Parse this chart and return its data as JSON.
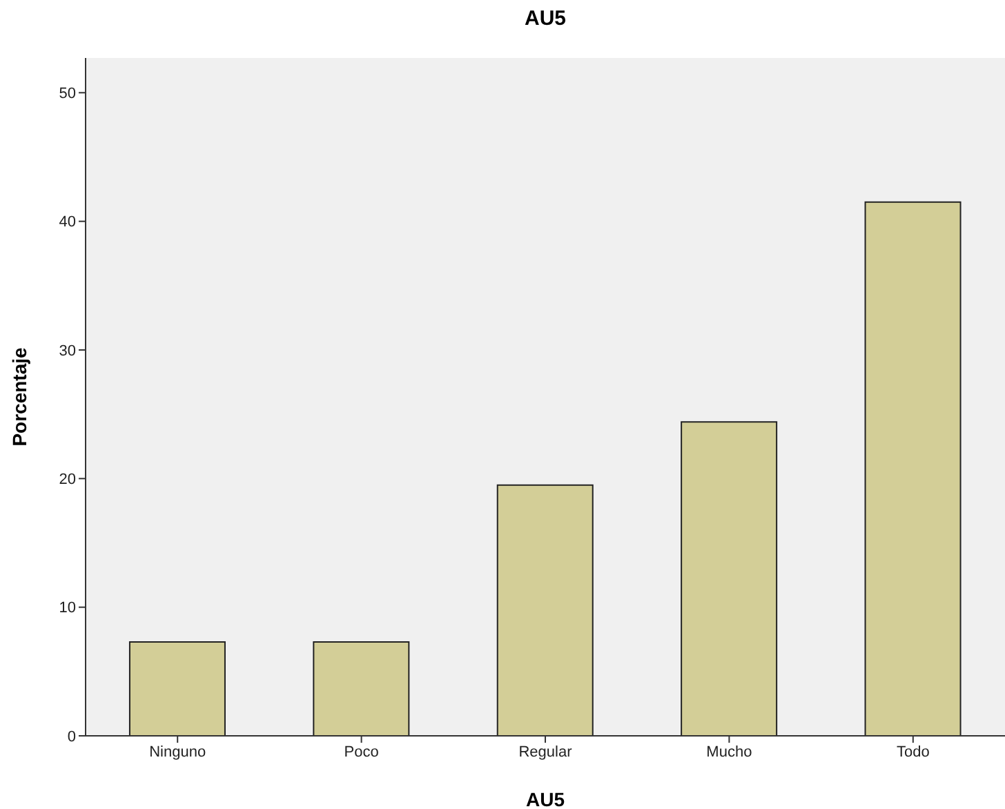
{
  "chart_data": {
    "type": "bar",
    "title": "AU5",
    "xlabel": "AU5",
    "ylabel": "Porcentaje",
    "categories": [
      "Ninguno",
      "Poco",
      "Regular",
      "Mucho",
      "Todo"
    ],
    "values": [
      7.3,
      7.3,
      19.5,
      24.4,
      41.5
    ],
    "color": "#d3ce97",
    "ylim": [
      0,
      52.7
    ],
    "yticks": [
      0,
      10,
      20,
      30,
      40,
      50
    ],
    "grid": false
  }
}
